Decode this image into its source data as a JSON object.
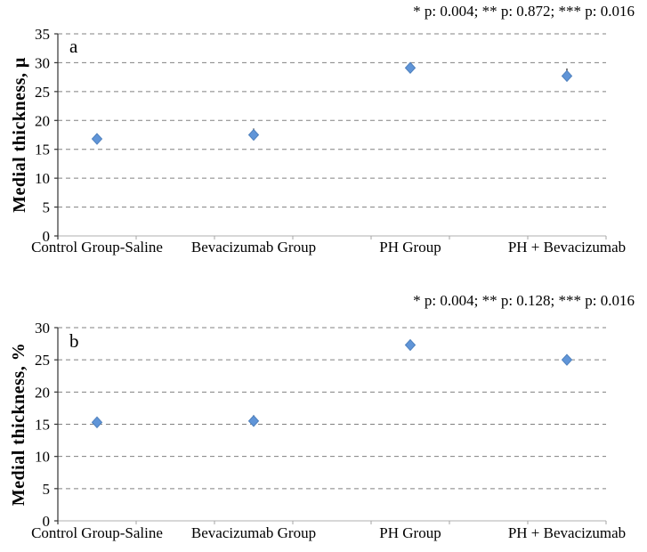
{
  "chart_data": [
    {
      "panel_label": "a",
      "type": "scatter",
      "annotation": "* p: 0.004; ** p: 0.872; *** p: 0.016",
      "ylabel": "Medial thickness, μ",
      "xlabel": "",
      "categories": [
        "Control Group-Saline",
        "Bevacizumab Group",
        "PH Group",
        "PH + Bevacizumab"
      ],
      "x": [
        1,
        2,
        3,
        4
      ],
      "values": [
        16.8,
        17.5,
        29.1,
        27.7
      ],
      "error_plus": [
        0.4,
        1.1,
        0.7,
        1.3
      ],
      "error_direction": "plus",
      "marker": "diamond",
      "ylim": [
        0,
        35
      ],
      "ytick_step": 5,
      "yticks": [
        0,
        5,
        10,
        15,
        20,
        25,
        30,
        35
      ],
      "xlim": [
        0.75,
        4.25
      ],
      "xtick_step": 0.5,
      "grid": "horizontal-dashed",
      "legend": "none"
    },
    {
      "panel_label": "b",
      "type": "scatter",
      "annotation": "* p: 0.004; ** p: 0.128; *** p: 0.016",
      "ylabel": "Medial thickness,  %",
      "xlabel": "",
      "categories": [
        "Control Group-Saline",
        "Bevacizumab Group",
        "PH Group",
        "PH + Bevacizumab"
      ],
      "x": [
        1,
        2,
        3,
        4
      ],
      "values": [
        15.3,
        15.5,
        27.3,
        25.0
      ],
      "error_plus": [
        0.3,
        0.9,
        0.8,
        0.3
      ],
      "error_direction": "plus",
      "marker": "diamond",
      "ylim": [
        0,
        30
      ],
      "ytick_step": 5,
      "yticks": [
        0,
        5,
        10,
        15,
        20,
        25,
        30
      ],
      "xlim": [
        0.75,
        4.25
      ],
      "xtick_step": 0.5,
      "grid": "horizontal-dashed",
      "legend": "none"
    }
  ],
  "colors": {
    "marker_fill": "#6095d8",
    "marker_stroke": "#4f81bd",
    "error_bar": "#404040",
    "gridline": "#808080",
    "x_axis": "#bfbfbf",
    "x_tick": "#a6a6a6",
    "y_axis": "#333333",
    "text": "#000000",
    "background": "#ffffff"
  }
}
